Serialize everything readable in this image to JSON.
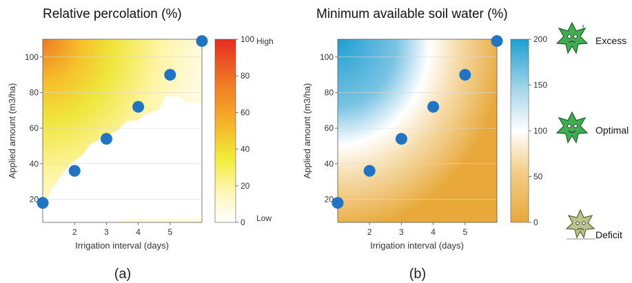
{
  "chart_data": [
    {
      "type": "heatmap",
      "title": "Relative percolation (%)",
      "xlabel": "Irrigation interval (days)",
      "ylabel": "Applied amount (m3/ha)",
      "xlim": [
        1,
        6
      ],
      "ylim": [
        7,
        110
      ],
      "x_ticks": [
        "2",
        "3",
        "4",
        "5"
      ],
      "y_ticks": [
        "20",
        "40",
        "60",
        "80",
        "100"
      ],
      "grid": true,
      "colorbar": {
        "range": [
          0,
          100
        ],
        "ticks": [
          "0",
          "20",
          "40",
          "60",
          "80",
          "100"
        ],
        "high_label": "High",
        "low_label": "Low",
        "colors": [
          "#ffffff",
          "#fff7c0",
          "#f1ec3a",
          "#f6b12a",
          "#ef7424",
          "#e52d20"
        ]
      },
      "points": [
        {
          "x": 1,
          "y": 18
        },
        {
          "x": 2,
          "y": 36
        },
        {
          "x": 3,
          "y": 54
        },
        {
          "x": 4,
          "y": 72
        },
        {
          "x": 5,
          "y": 90
        },
        {
          "x": 6,
          "y": 109
        }
      ],
      "point_color": "#1f74c4",
      "sublabel": "(a)"
    },
    {
      "type": "heatmap",
      "title": "Minimum available soil water (%)",
      "xlabel": "Irrigation interval (days)",
      "ylabel": "Applied amount (m3/ha)",
      "xlim": [
        1,
        6
      ],
      "ylim": [
        7,
        110
      ],
      "x_ticks": [
        "2",
        "3",
        "4",
        "5"
      ],
      "y_ticks": [
        "20",
        "40",
        "60",
        "80",
        "100"
      ],
      "grid": true,
      "colorbar": {
        "range": [
          0,
          200
        ],
        "ticks": [
          "0",
          "50",
          "100",
          "150",
          "200"
        ],
        "colors": [
          "#e8a83a",
          "#f3cf8a",
          "#ffffff",
          "#a9d7ea",
          "#1e9fd1"
        ]
      },
      "points": [
        {
          "x": 1,
          "y": 18
        },
        {
          "x": 2,
          "y": 36
        },
        {
          "x": 3,
          "y": 54
        },
        {
          "x": 4,
          "y": 72
        },
        {
          "x": 5,
          "y": 90
        },
        {
          "x": 6,
          "y": 109
        }
      ],
      "point_color": "#1f74c4",
      "conditions": [
        "Excess",
        "Optimal",
        "Deficit"
      ],
      "sublabel": "(b)"
    }
  ]
}
